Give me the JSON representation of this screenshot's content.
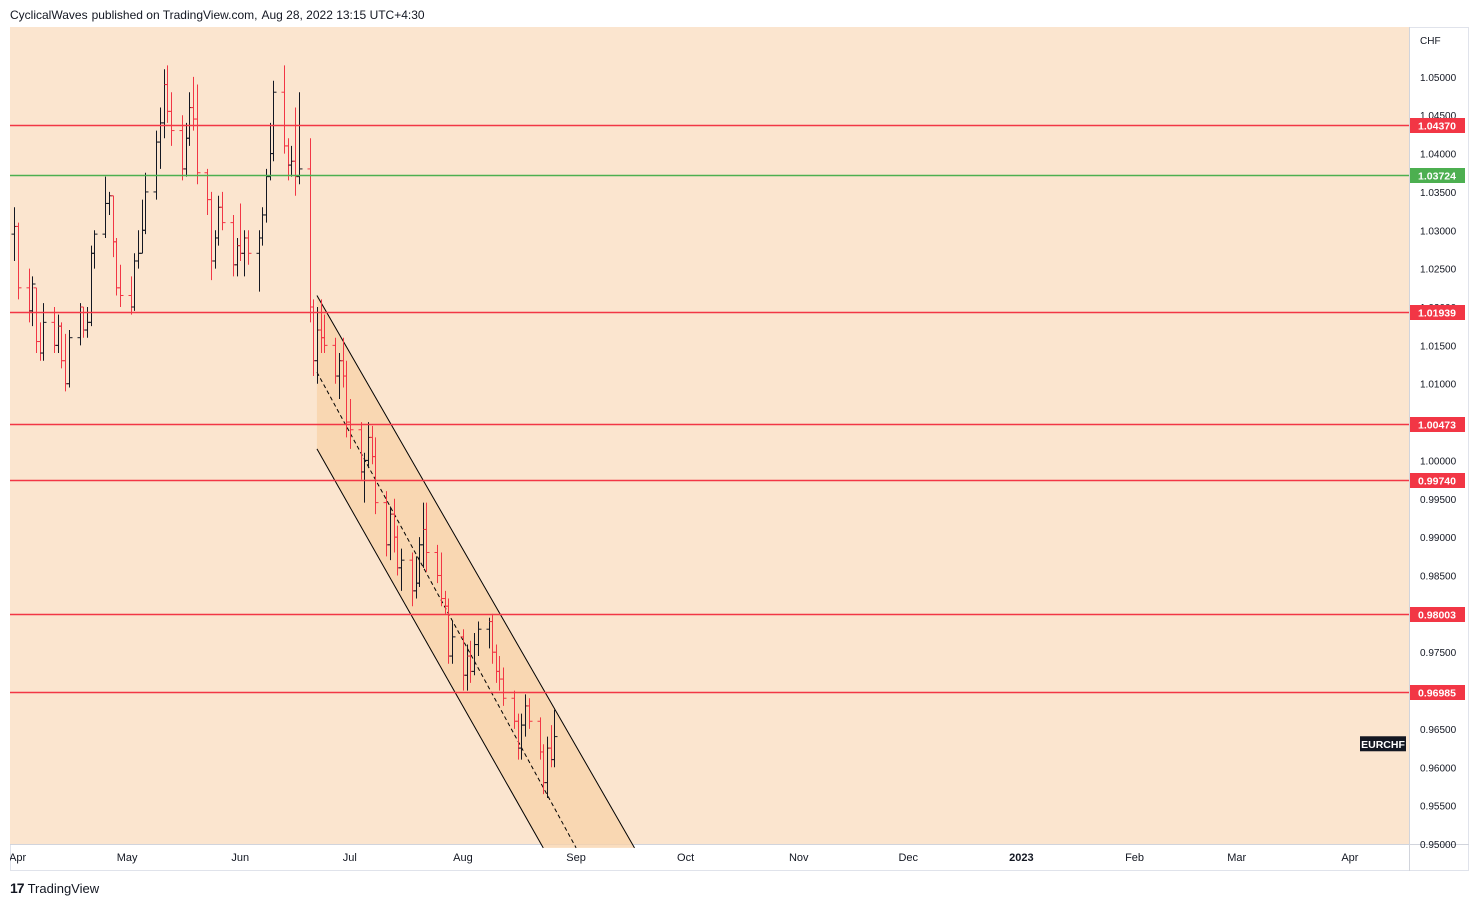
{
  "header": {
    "author": "CyclicalWaves",
    "published_text": "published on TradingView.com,",
    "date": "Aug 28, 2022 13:15 UTC+4:30"
  },
  "footer": {
    "logo": "17",
    "brand": "TradingView"
  },
  "colors": {
    "background": "#fbe5cf",
    "bull": "#131722",
    "bear": "#f23645",
    "resistance": "#f23645",
    "support_green": "#4caf50",
    "channel_fill": "#f8d2a8",
    "channel_line": "#000000"
  },
  "chart_data": {
    "type": "ohlc-bar",
    "symbol": "EURCHF",
    "currency": "CHF",
    "y_axis_ticks": [
      "1.05000",
      "1.04500",
      "1.04000",
      "1.03500",
      "1.03000",
      "1.02500",
      "1.02000",
      "1.01500",
      "1.01000",
      "1.00500",
      "1.00000",
      "0.99500",
      "0.99000",
      "0.98500",
      "0.98000",
      "0.97500",
      "0.97000",
      "0.96500",
      "0.96000",
      "0.95500",
      "0.95000"
    ],
    "ylim": [
      0.95,
      1.0565
    ],
    "x_axis_labels": [
      {
        "label": "Apr",
        "date": "2022-04-01"
      },
      {
        "label": "May",
        "date": "2022-05-01"
      },
      {
        "label": "Jun",
        "date": "2022-06-01"
      },
      {
        "label": "Jul",
        "date": "2022-07-01"
      },
      {
        "label": "Aug",
        "date": "2022-08-01"
      },
      {
        "label": "Sep",
        "date": "2022-09-01"
      },
      {
        "label": "Oct",
        "date": "2022-10-01"
      },
      {
        "label": "Nov",
        "date": "2022-11-01"
      },
      {
        "label": "Dec",
        "date": "2022-12-01"
      },
      {
        "label": "2023",
        "date": "2023-01-01",
        "bold": true
      },
      {
        "label": "Feb",
        "date": "2023-02-01"
      },
      {
        "label": "Mar",
        "date": "2023-03-01"
      },
      {
        "label": "Apr",
        "date": "2023-04-01"
      }
    ],
    "horizontal_levels": [
      {
        "value": 1.0437,
        "label": "1.04370",
        "color": "red"
      },
      {
        "value": 1.03724,
        "label": "1.03724",
        "color": "green"
      },
      {
        "value": 1.01939,
        "label": "1.01939",
        "color": "red"
      },
      {
        "value": 1.00473,
        "label": "1.00473",
        "color": "red"
      },
      {
        "value": 0.9974,
        "label": "0.99740",
        "color": "red"
      },
      {
        "value": 0.98003,
        "label": "0.98003",
        "color": "red"
      },
      {
        "value": 0.96985,
        "label": "0.96985",
        "color": "red"
      }
    ],
    "channel": {
      "upper_start": {
        "date": "2022-06-22",
        "value": 1.0215
      },
      "upper_end": {
        "date": "2022-09-17",
        "value": 0.9495
      },
      "mid_start": {
        "date": "2022-06-22",
        "value": 1.0115
      },
      "mid_end": {
        "date": "2022-09-01",
        "value": 0.9495
      },
      "lower_start": {
        "date": "2022-06-22",
        "value": 1.0015
      },
      "lower_end": {
        "date": "2022-08-23",
        "value": 0.9495
      }
    },
    "last_price_label": "EURCHF",
    "last_price_label_value": 0.963,
    "bars": [
      {
        "date": "2022-03-31",
        "open": 1.0295,
        "high": 1.033,
        "low": 1.026,
        "close": 1.0305
      },
      {
        "date": "2022-04-01",
        "open": 1.0305,
        "high": 1.031,
        "low": 1.021,
        "close": 1.0225
      },
      {
        "date": "2022-04-04",
        "open": 1.0225,
        "high": 1.025,
        "low": 1.018,
        "close": 1.0195
      },
      {
        "date": "2022-04-05",
        "open": 1.0195,
        "high": 1.024,
        "low": 1.0175,
        "close": 1.023
      },
      {
        "date": "2022-04-06",
        "open": 1.0225,
        "high": 1.0225,
        "low": 1.014,
        "close": 1.0155
      },
      {
        "date": "2022-04-07",
        "open": 1.0155,
        "high": 1.018,
        "low": 1.013,
        "close": 1.014
      },
      {
        "date": "2022-04-08",
        "open": 1.014,
        "high": 1.0205,
        "low": 1.013,
        "close": 1.018
      },
      {
        "date": "2022-04-11",
        "open": 1.018,
        "high": 1.02,
        "low": 1.014,
        "close": 1.015
      },
      {
        "date": "2022-04-12",
        "open": 1.015,
        "high": 1.019,
        "low": 1.014,
        "close": 1.0175
      },
      {
        "date": "2022-04-13",
        "open": 1.0175,
        "high": 1.018,
        "low": 1.012,
        "close": 1.013
      },
      {
        "date": "2022-04-14",
        "open": 1.013,
        "high": 1.0165,
        "low": 1.009,
        "close": 1.01
      },
      {
        "date": "2022-04-15",
        "open": 1.01,
        "high": 1.017,
        "low": 1.0095,
        "close": 1.016
      },
      {
        "date": "2022-04-18",
        "open": 1.016,
        "high": 1.0205,
        "low": 1.015,
        "close": 1.02
      },
      {
        "date": "2022-04-19",
        "open": 1.02,
        "high": 1.02,
        "low": 1.016,
        "close": 1.017
      },
      {
        "date": "2022-04-20",
        "open": 1.017,
        "high": 1.02,
        "low": 1.016,
        "close": 1.018
      },
      {
        "date": "2022-04-21",
        "open": 1.018,
        "high": 1.028,
        "low": 1.0175,
        "close": 1.027
      },
      {
        "date": "2022-04-22",
        "open": 1.027,
        "high": 1.03,
        "low": 1.025,
        "close": 1.0295
      },
      {
        "date": "2022-04-25",
        "open": 1.0295,
        "high": 1.037,
        "low": 1.029,
        "close": 1.0335
      },
      {
        "date": "2022-04-26",
        "open": 1.0335,
        "high": 1.035,
        "low": 1.032,
        "close": 1.0345
      },
      {
        "date": "2022-04-27",
        "open": 1.0345,
        "high": 1.0345,
        "low": 1.0265,
        "close": 1.0285
      },
      {
        "date": "2022-04-28",
        "open": 1.0285,
        "high": 1.029,
        "low": 1.0215,
        "close": 1.0225
      },
      {
        "date": "2022-04-29",
        "open": 1.0225,
        "high": 1.0255,
        "low": 1.02,
        "close": 1.0215
      },
      {
        "date": "2022-05-02",
        "open": 1.0215,
        "high": 1.024,
        "low": 1.019,
        "close": 1.02
      },
      {
        "date": "2022-05-03",
        "open": 1.02,
        "high": 1.027,
        "low": 1.0195,
        "close": 1.026
      },
      {
        "date": "2022-05-04",
        "open": 1.026,
        "high": 1.03,
        "low": 1.025,
        "close": 1.027
      },
      {
        "date": "2022-05-05",
        "open": 1.027,
        "high": 1.034,
        "low": 1.027,
        "close": 1.03
      },
      {
        "date": "2022-05-06",
        "open": 1.03,
        "high": 1.0375,
        "low": 1.0295,
        "close": 1.035
      },
      {
        "date": "2022-05-09",
        "open": 1.035,
        "high": 1.043,
        "low": 1.034,
        "close": 1.0415
      },
      {
        "date": "2022-05-10",
        "open": 1.0415,
        "high": 1.046,
        "low": 1.038,
        "close": 1.044
      },
      {
        "date": "2022-05-11",
        "open": 1.044,
        "high": 1.051,
        "low": 1.042,
        "close": 1.049
      },
      {
        "date": "2022-05-12",
        "open": 1.049,
        "high": 1.0515,
        "low": 1.044,
        "close": 1.0455
      },
      {
        "date": "2022-05-13",
        "open": 1.0455,
        "high": 1.048,
        "low": 1.041,
        "close": 1.043
      },
      {
        "date": "2022-05-16",
        "open": 1.043,
        "high": 1.045,
        "low": 1.0365,
        "close": 1.038
      },
      {
        "date": "2022-05-17",
        "open": 1.038,
        "high": 1.044,
        "low": 1.037,
        "close": 1.042
      },
      {
        "date": "2022-05-18",
        "open": 1.042,
        "high": 1.048,
        "low": 1.041,
        "close": 1.046
      },
      {
        "date": "2022-05-19",
        "open": 1.046,
        "high": 1.05,
        "low": 1.043,
        "close": 1.0445
      },
      {
        "date": "2022-05-20",
        "open": 1.0445,
        "high": 1.049,
        "low": 1.036,
        "close": 1.0375
      },
      {
        "date": "2022-05-23",
        "open": 1.0375,
        "high": 1.038,
        "low": 1.032,
        "close": 1.034
      },
      {
        "date": "2022-05-24",
        "open": 1.034,
        "high": 1.035,
        "low": 1.0235,
        "close": 1.026
      },
      {
        "date": "2022-05-25",
        "open": 1.026,
        "high": 1.03,
        "low": 1.025,
        "close": 1.029
      },
      {
        "date": "2022-05-26",
        "open": 1.029,
        "high": 1.0345,
        "low": 1.028,
        "close": 1.033
      },
      {
        "date": "2022-05-27",
        "open": 1.033,
        "high": 1.035,
        "low": 1.03,
        "close": 1.031
      },
      {
        "date": "2022-05-30",
        "open": 1.031,
        "high": 1.032,
        "low": 1.024,
        "close": 1.0255
      },
      {
        "date": "2022-05-31",
        "open": 1.0255,
        "high": 1.029,
        "low": 1.024,
        "close": 1.028
      },
      {
        "date": "2022-06-01",
        "open": 1.028,
        "high": 1.0335,
        "low": 1.026,
        "close": 1.027
      },
      {
        "date": "2022-06-02",
        "open": 1.027,
        "high": 1.03,
        "low": 1.024,
        "close": 1.029
      },
      {
        "date": "2022-06-03",
        "open": 1.029,
        "high": 1.03,
        "low": 1.0255,
        "close": 1.027
      },
      {
        "date": "2022-06-06",
        "open": 1.027,
        "high": 1.03,
        "low": 1.022,
        "close": 1.029
      },
      {
        "date": "2022-06-07",
        "open": 1.029,
        "high": 1.033,
        "low": 1.028,
        "close": 1.032
      },
      {
        "date": "2022-06-08",
        "open": 1.032,
        "high": 1.038,
        "low": 1.031,
        "close": 1.037
      },
      {
        "date": "2022-06-09",
        "open": 1.037,
        "high": 1.044,
        "low": 1.0365,
        "close": 1.04
      },
      {
        "date": "2022-06-10",
        "open": 1.04,
        "high": 1.0495,
        "low": 1.039,
        "close": 1.048
      },
      {
        "date": "2022-06-13",
        "open": 1.048,
        "high": 1.0515,
        "low": 1.04,
        "close": 1.041
      },
      {
        "date": "2022-06-14",
        "open": 1.041,
        "high": 1.042,
        "low": 1.0365,
        "close": 1.0385
      },
      {
        "date": "2022-06-15",
        "open": 1.0385,
        "high": 1.041,
        "low": 1.037,
        "close": 1.039
      },
      {
        "date": "2022-06-16",
        "open": 1.039,
        "high": 1.046,
        "low": 1.0345,
        "close": 1.037
      },
      {
        "date": "2022-06-17",
        "open": 1.037,
        "high": 1.048,
        "low": 1.036,
        "close": 1.038
      },
      {
        "date": "2022-06-20",
        "open": 1.038,
        "high": 1.042,
        "low": 1.018,
        "close": 1.02
      },
      {
        "date": "2022-06-21",
        "open": 1.02,
        "high": 1.021,
        "low": 1.011,
        "close": 1.013
      },
      {
        "date": "2022-06-22",
        "open": 1.013,
        "high": 1.02,
        "low": 1.01,
        "close": 1.017
      },
      {
        "date": "2022-06-23",
        "open": 1.017,
        "high": 1.021,
        "low": 1.014,
        "close": 1.016
      },
      {
        "date": "2022-06-24",
        "open": 1.016,
        "high": 1.019,
        "low": 1.014,
        "close": 1.015
      },
      {
        "date": "2022-06-27",
        "open": 1.015,
        "high": 1.016,
        "low": 1.01,
        "close": 1.011
      },
      {
        "date": "2022-06-28",
        "open": 1.011,
        "high": 1.014,
        "low": 1.008,
        "close": 1.013
      },
      {
        "date": "2022-06-29",
        "open": 1.013,
        "high": 1.016,
        "low": 1.0095,
        "close": 1.011
      },
      {
        "date": "2022-06-30",
        "open": 1.011,
        "high": 1.013,
        "low": 1.003,
        "close": 1.005
      },
      {
        "date": "2022-07-01",
        "open": 1.005,
        "high": 1.008,
        "low": 1.0015,
        "close": 1.004
      },
      {
        "date": "2022-07-04",
        "open": 1.004,
        "high": 1.005,
        "low": 0.9975,
        "close": 0.9985
      },
      {
        "date": "2022-07-05",
        "open": 0.9985,
        "high": 1.001,
        "low": 0.9945,
        "close": 1.0
      },
      {
        "date": "2022-07-06",
        "open": 1.0,
        "high": 1.005,
        "low": 0.999,
        "close": 1.003
      },
      {
        "date": "2022-07-07",
        "open": 1.003,
        "high": 1.0045,
        "low": 0.9995,
        "close": 1.0005
      },
      {
        "date": "2022-07-08",
        "open": 1.0005,
        "high": 1.003,
        "low": 0.993,
        "close": 0.9945
      },
      {
        "date": "2022-07-11",
        "open": 0.9945,
        "high": 0.996,
        "low": 0.9875,
        "close": 0.989
      },
      {
        "date": "2022-07-12",
        "open": 0.989,
        "high": 0.994,
        "low": 0.987,
        "close": 0.993
      },
      {
        "date": "2022-07-13",
        "open": 0.993,
        "high": 0.995,
        "low": 0.988,
        "close": 0.99
      },
      {
        "date": "2022-07-14",
        "open": 0.99,
        "high": 0.9915,
        "low": 0.985,
        "close": 0.986
      },
      {
        "date": "2022-07-15",
        "open": 0.986,
        "high": 0.9885,
        "low": 0.983,
        "close": 0.987
      },
      {
        "date": "2022-07-18",
        "open": 0.987,
        "high": 0.988,
        "low": 0.981,
        "close": 0.983
      },
      {
        "date": "2022-07-19",
        "open": 0.983,
        "high": 0.9875,
        "low": 0.982,
        "close": 0.984
      },
      {
        "date": "2022-07-20",
        "open": 0.984,
        "high": 0.99,
        "low": 0.9835,
        "close": 0.989
      },
      {
        "date": "2022-07-21",
        "open": 0.989,
        "high": 0.9945,
        "low": 0.986,
        "close": 0.991
      },
      {
        "date": "2022-07-22",
        "open": 0.991,
        "high": 0.9945,
        "low": 0.9855,
        "close": 0.988
      },
      {
        "date": "2022-07-25",
        "open": 0.988,
        "high": 0.989,
        "low": 0.984,
        "close": 0.985
      },
      {
        "date": "2022-07-26",
        "open": 0.985,
        "high": 0.988,
        "low": 0.981,
        "close": 0.982
      },
      {
        "date": "2022-07-27",
        "open": 0.982,
        "high": 0.983,
        "low": 0.98,
        "close": 0.981
      },
      {
        "date": "2022-07-28",
        "open": 0.981,
        "high": 0.982,
        "low": 0.9735,
        "close": 0.9745
      },
      {
        "date": "2022-07-29",
        "open": 0.9745,
        "high": 0.979,
        "low": 0.9735,
        "close": 0.977
      },
      {
        "date": "2022-08-01",
        "open": 0.977,
        "high": 0.978,
        "low": 0.97,
        "close": 0.972
      },
      {
        "date": "2022-08-02",
        "open": 0.972,
        "high": 0.976,
        "low": 0.97,
        "close": 0.9745
      },
      {
        "date": "2022-08-03",
        "open": 0.9745,
        "high": 0.9765,
        "low": 0.971,
        "close": 0.9725
      },
      {
        "date": "2022-08-04",
        "open": 0.9725,
        "high": 0.9775,
        "low": 0.972,
        "close": 0.976
      },
      {
        "date": "2022-08-05",
        "open": 0.976,
        "high": 0.979,
        "low": 0.9745,
        "close": 0.978
      },
      {
        "date": "2022-08-08",
        "open": 0.978,
        "high": 0.9795,
        "low": 0.9755,
        "close": 0.979
      },
      {
        "date": "2022-08-09",
        "open": 0.979,
        "high": 0.98,
        "low": 0.9735,
        "close": 0.975
      },
      {
        "date": "2022-08-10",
        "open": 0.975,
        "high": 0.976,
        "low": 0.971,
        "close": 0.9725
      },
      {
        "date": "2022-08-11",
        "open": 0.9725,
        "high": 0.9745,
        "low": 0.97,
        "close": 0.9715
      },
      {
        "date": "2022-08-12",
        "open": 0.9715,
        "high": 0.973,
        "low": 0.968,
        "close": 0.969
      },
      {
        "date": "2022-08-15",
        "open": 0.969,
        "high": 0.97,
        "low": 0.965,
        "close": 0.966
      },
      {
        "date": "2022-08-16",
        "open": 0.966,
        "high": 0.967,
        "low": 0.961,
        "close": 0.9625
      },
      {
        "date": "2022-08-17",
        "open": 0.9625,
        "high": 0.967,
        "low": 0.961,
        "close": 0.9655
      },
      {
        "date": "2022-08-18",
        "open": 0.9655,
        "high": 0.9695,
        "low": 0.964,
        "close": 0.968
      },
      {
        "date": "2022-08-19",
        "open": 0.968,
        "high": 0.969,
        "low": 0.965,
        "close": 0.966
      },
      {
        "date": "2022-08-22",
        "open": 0.966,
        "high": 0.9665,
        "low": 0.961,
        "close": 0.962
      },
      {
        "date": "2022-08-23",
        "open": 0.962,
        "high": 0.963,
        "low": 0.9565,
        "close": 0.958
      },
      {
        "date": "2022-08-24",
        "open": 0.958,
        "high": 0.964,
        "low": 0.956,
        "close": 0.9625
      },
      {
        "date": "2022-08-25",
        "open": 0.9625,
        "high": 0.9655,
        "low": 0.96,
        "close": 0.961
      },
      {
        "date": "2022-08-26",
        "open": 0.961,
        "high": 0.9675,
        "low": 0.96,
        "close": 0.964
      }
    ]
  }
}
